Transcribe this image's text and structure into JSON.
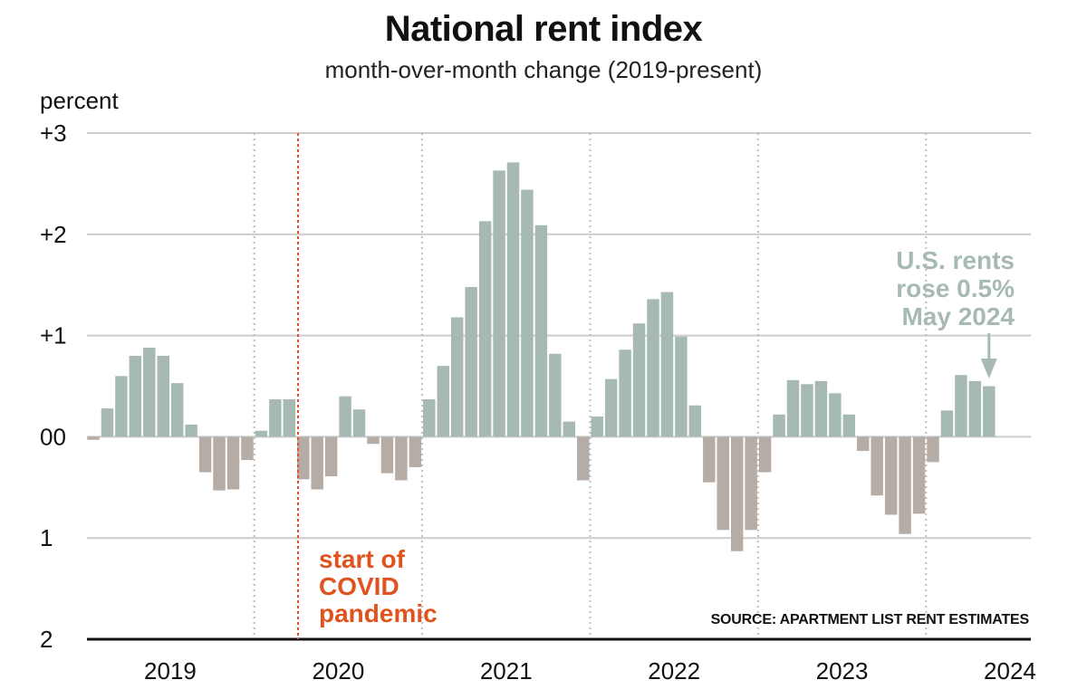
{
  "chart_data": {
    "type": "bar",
    "title": "National rent index",
    "subtitle": "month-over-month change (2019-present)",
    "ylabel": "percent",
    "ylim": [
      -2,
      3
    ],
    "y_ticks": [
      {
        "value": 3,
        "label": "+3"
      },
      {
        "value": 2,
        "label": "+2"
      },
      {
        "value": 1,
        "label": "+1"
      },
      {
        "value": 0,
        "label": "00"
      },
      {
        "value": -1,
        "label": "1"
      },
      {
        "value": -2,
        "label": "2"
      }
    ],
    "x_ticks": [
      "2019",
      "2020",
      "2021",
      "2022",
      "2023",
      "2024"
    ],
    "start": "2019-01",
    "categories": [
      "2019-01",
      "2019-02",
      "2019-03",
      "2019-04",
      "2019-05",
      "2019-06",
      "2019-07",
      "2019-08",
      "2019-09",
      "2019-10",
      "2019-11",
      "2019-12",
      "2020-01",
      "2020-02",
      "2020-03",
      "2020-04",
      "2020-05",
      "2020-06",
      "2020-07",
      "2020-08",
      "2020-09",
      "2020-10",
      "2020-11",
      "2020-12",
      "2021-01",
      "2021-02",
      "2021-03",
      "2021-04",
      "2021-05",
      "2021-06",
      "2021-07",
      "2021-08",
      "2021-09",
      "2021-10",
      "2021-11",
      "2021-12",
      "2022-01",
      "2022-02",
      "2022-03",
      "2022-04",
      "2022-05",
      "2022-06",
      "2022-07",
      "2022-08",
      "2022-09",
      "2022-10",
      "2022-11",
      "2022-12",
      "2023-01",
      "2023-02",
      "2023-03",
      "2023-04",
      "2023-05",
      "2023-06",
      "2023-07",
      "2023-08",
      "2023-09",
      "2023-10",
      "2023-11",
      "2023-12",
      "2024-01",
      "2024-02",
      "2024-03",
      "2024-04",
      "2024-05"
    ],
    "values": [
      -0.03,
      0.28,
      0.6,
      0.8,
      0.88,
      0.8,
      0.53,
      0.12,
      -0.35,
      -0.53,
      -0.52,
      -0.23,
      0.06,
      0.37,
      0.37,
      -0.42,
      -0.52,
      -0.39,
      0.4,
      0.27,
      -0.07,
      -0.36,
      -0.43,
      -0.3,
      0.37,
      0.7,
      1.18,
      1.48,
      2.13,
      2.63,
      2.71,
      2.44,
      2.09,
      0.82,
      0.15,
      -0.43,
      0.2,
      0.57,
      0.86,
      1.12,
      1.36,
      1.43,
      0.99,
      0.31,
      -0.45,
      -0.92,
      -1.13,
      -0.92,
      -0.35,
      0.22,
      0.56,
      0.52,
      0.55,
      0.43,
      0.22,
      -0.14,
      -0.58,
      -0.77,
      -0.96,
      -0.76,
      -0.25,
      0.26,
      0.61,
      0.55,
      0.5
    ],
    "colors": {
      "positive": "#a7b9b3",
      "negative": "#b5aca6",
      "covid": "#e0531f",
      "note": "#a7b9b3",
      "grid": "#cccccc"
    },
    "covid_marker": {
      "date": "2020-04",
      "label": [
        "start of",
        "COVID",
        "pandemic"
      ]
    },
    "note": {
      "lines": [
        "U.S. rents",
        "rose 0.5%",
        "May 2024"
      ],
      "points_to": "2024-05"
    },
    "source": "SOURCE: APARTMENT LIST RENT ESTIMATES",
    "grid": true
  }
}
